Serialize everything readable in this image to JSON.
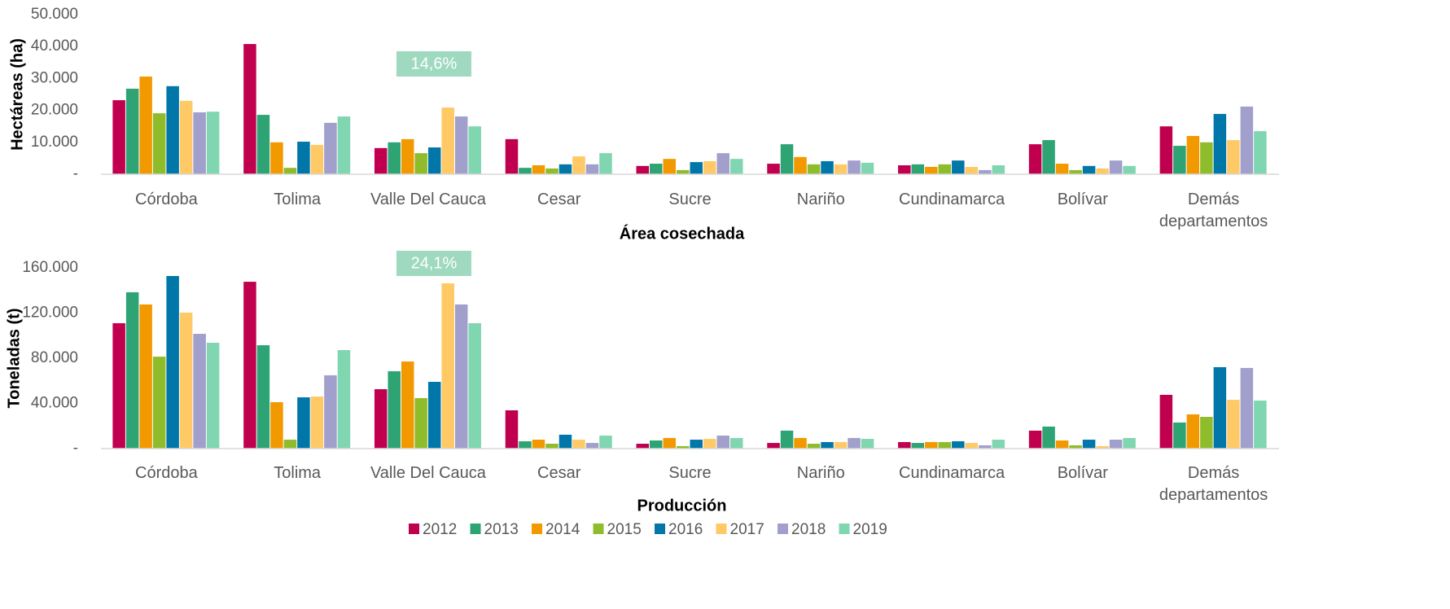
{
  "chart_data": [
    {
      "type": "bar",
      "ylabel": "Hectáreas (ha)",
      "xlabel": "Área cosechada",
      "annotation": "14,6%",
      "categories": [
        "Córdoba",
        "Tolima",
        "Valle Del Cauca",
        "Cesar",
        "Sucre",
        "Nariño",
        "Cundinamarca",
        "Bolívar",
        "Demás departamentos"
      ],
      "ylim": [
        0,
        50000
      ],
      "yticks": [
        {
          "value": 0,
          "label": "-"
        },
        {
          "value": 10000,
          "label": "10.000"
        },
        {
          "value": 20000,
          "label": "20.000"
        },
        {
          "value": 30000,
          "label": "30.000"
        },
        {
          "value": 40000,
          "label": "40.000"
        },
        {
          "value": 50000,
          "label": "50.000"
        }
      ],
      "series": [
        {
          "name": "2012",
          "color": "#c0004f",
          "values": [
            23200,
            40800,
            8200,
            11000,
            2600,
            3300,
            2800,
            9400,
            15000
          ]
        },
        {
          "name": "2013",
          "color": "#2ea374",
          "values": [
            26800,
            18600,
            10000,
            2000,
            3300,
            9400,
            3100,
            10700,
            8900
          ]
        },
        {
          "name": "2014",
          "color": "#f29900",
          "values": [
            30600,
            10000,
            11000,
            2800,
            4800,
            5400,
            2300,
            3300,
            12000
          ]
        },
        {
          "name": "2015",
          "color": "#8fbc2a",
          "values": [
            19100,
            2000,
            6600,
            1800,
            1300,
            3100,
            3100,
            1300,
            10000
          ]
        },
        {
          "name": "2016",
          "color": "#0077a8",
          "values": [
            27600,
            10200,
            8400,
            3100,
            3800,
            4100,
            4300,
            2600,
            18900
          ]
        },
        {
          "name": "2017",
          "color": "#ffc966",
          "values": [
            23000,
            9200,
            20900,
            5600,
            4100,
            3100,
            2300,
            1800,
            10700
          ]
        },
        {
          "name": "2018",
          "color": "#a19fcb",
          "values": [
            19400,
            16100,
            18100,
            3100,
            6600,
            4300,
            1300,
            4300,
            21200
          ]
        },
        {
          "name": "2019",
          "color": "#7fd6b0",
          "values": [
            19600,
            18100,
            15000,
            6600,
            4800,
            3600,
            2800,
            2600,
            13500
          ]
        }
      ]
    },
    {
      "type": "bar",
      "ylabel": "Toneladas (t)",
      "xlabel": "Producción",
      "annotation": "24,1%",
      "categories": [
        "Córdoba",
        "Tolima",
        "Valle Del Cauca",
        "Cesar",
        "Sucre",
        "Nariño",
        "Cundinamarca",
        "Bolívar",
        "Demás departamentos"
      ],
      "ylim": [
        0,
        160000
      ],
      "yticks": [
        {
          "value": 0,
          "label": "-"
        },
        {
          "value": 40000,
          "label": "40.000"
        },
        {
          "value": 80000,
          "label": "80.000"
        },
        {
          "value": 120000,
          "label": "120.000"
        },
        {
          "value": 160000,
          "label": "160.000"
        }
      ],
      "series": [
        {
          "name": "2012",
          "color": "#c0004f",
          "values": [
            111000,
            147700,
            52600,
            33900,
            4300,
            5000,
            5800,
            15900,
            47600
          ]
        },
        {
          "name": "2013",
          "color": "#2ea374",
          "values": [
            138400,
            91500,
            68500,
            6500,
            7200,
            15900,
            5000,
            19500,
            23100
          ]
        },
        {
          "name": "2014",
          "color": "#f29900",
          "values": [
            127600,
            41100,
            77100,
            7900,
            9400,
            9400,
            5800,
            7200,
            30300
          ]
        },
        {
          "name": "2015",
          "color": "#8fbc2a",
          "values": [
            81400,
            7900,
            44700,
            4300,
            2200,
            4300,
            5800,
            2900,
            28100
          ]
        },
        {
          "name": "2016",
          "color": "#0077a8",
          "values": [
            152800,
            45400,
            59100,
            12300,
            7900,
            5800,
            6500,
            7900,
            72100
          ]
        },
        {
          "name": "2017",
          "color": "#ffc966",
          "values": [
            120400,
            46100,
            146300,
            7900,
            8600,
            5800,
            5000,
            2200,
            43200
          ]
        },
        {
          "name": "2018",
          "color": "#a19fcb",
          "values": [
            101600,
            64900,
            127600,
            5000,
            11500,
            9400,
            2900,
            7900,
            71400
          ]
        },
        {
          "name": "2019",
          "color": "#7fd6b0",
          "values": [
            93700,
            87200,
            111000,
            11500,
            9400,
            8600,
            7900,
            9400,
            42500
          ]
        }
      ]
    }
  ]
}
